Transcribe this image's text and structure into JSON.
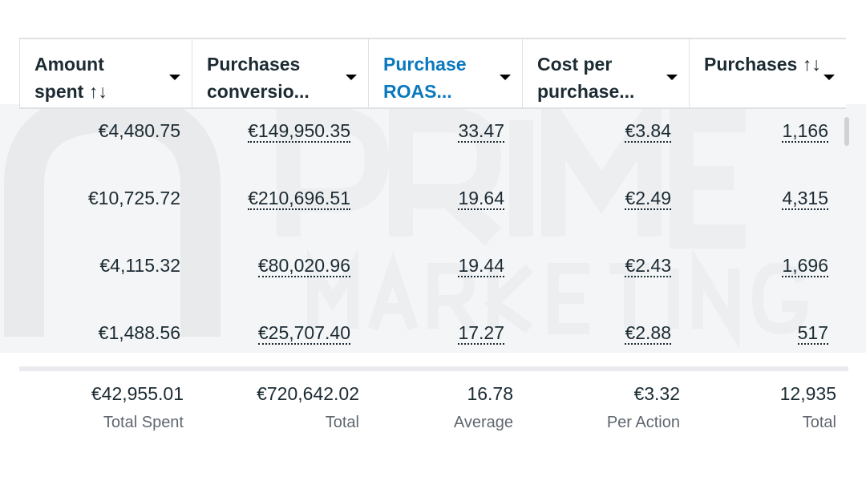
{
  "columns": [
    {
      "label": "Amount spent ↑↓",
      "color": "#1c2b33"
    },
    {
      "label": "Purchases conversio...",
      "color": "#1c2b33"
    },
    {
      "label": "Purchase ROAS...",
      "color": "#0a78be"
    },
    {
      "label": "Cost per purchase...",
      "color": "#1c2b33"
    },
    {
      "label": "Purchases ↑↓",
      "color": "#1c2b33"
    }
  ],
  "rows": [
    [
      "€4,480.75",
      "€149,950.35",
      "33.47",
      "€3.84",
      "1,166"
    ],
    [
      "€10,725.72",
      "€210,696.51",
      "19.64",
      "€2.49",
      "4,315"
    ],
    [
      "€4,115.32",
      "€80,020.96",
      "19.44",
      "€2.43",
      "1,696"
    ],
    [
      "€1,488.56",
      "€25,707.40",
      "17.27",
      "€2.88",
      "517"
    ]
  ],
  "totals": [
    {
      "value": "€42,955.01",
      "label": "Total Spent"
    },
    {
      "value": "€720,642.02",
      "label": "Total"
    },
    {
      "value": "16.78",
      "label": "Average"
    },
    {
      "value": "€3.32",
      "label": "Per Action"
    },
    {
      "value": "12,935",
      "label": "Total"
    }
  ],
  "watermark": {
    "line1": "PRIME",
    "line2": "MARKETING"
  }
}
